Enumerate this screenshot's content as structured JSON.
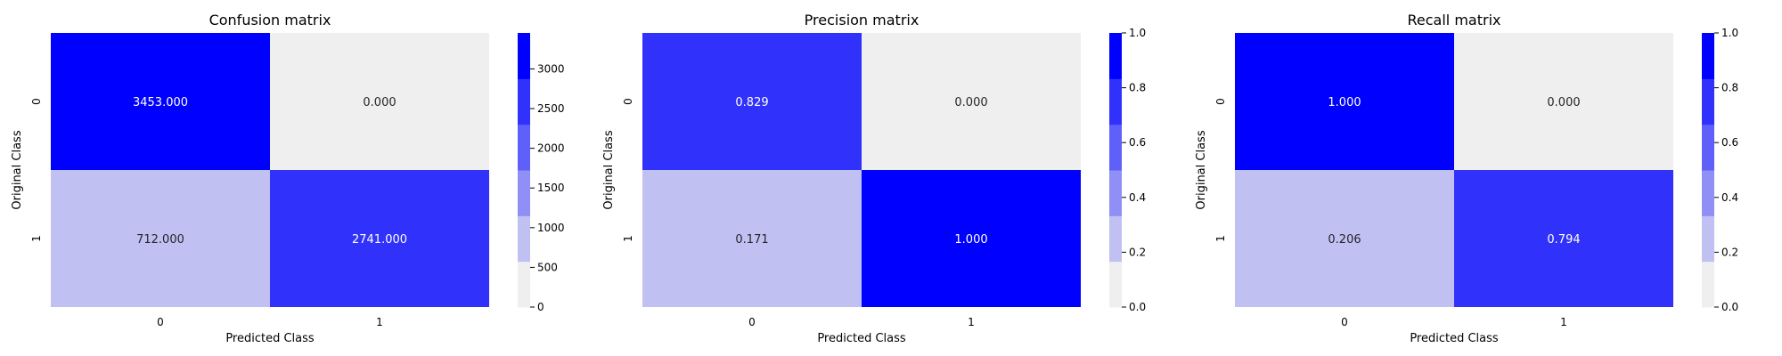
{
  "palette": {
    "colors": [
      "#efefef",
      "#c0c0f3",
      "#8f8ff6",
      "#5f5ff9",
      "#3131fc",
      "#0000ff"
    ],
    "axis": "#000000",
    "cell_text_light": "#ffffff",
    "cell_text_dark": "#262626"
  },
  "chart_data": [
    {
      "type": "heatmap",
      "title": "Confusion matrix",
      "xlabel": "Predicted Class",
      "ylabel": "Original Class",
      "x_tick_labels": [
        "0",
        "1"
      ],
      "y_tick_labels": [
        "0",
        "1"
      ],
      "values": [
        [
          3453,
          0
        ],
        [
          712,
          2741
        ]
      ],
      "cell_labels": [
        [
          "3453.000",
          "0.000"
        ],
        [
          "712.000",
          "2741.000"
        ]
      ],
      "colorbar": {
        "min": 0,
        "max": 3453,
        "ticks": [
          0,
          500,
          1000,
          1500,
          2000,
          2500,
          3000
        ],
        "tick_labels": [
          "0",
          "500",
          "1000",
          "1500",
          "2000",
          "2500",
          "3000"
        ]
      }
    },
    {
      "type": "heatmap",
      "title": "Precision matrix",
      "xlabel": "Predicted Class",
      "ylabel": "Original Class",
      "x_tick_labels": [
        "0",
        "1"
      ],
      "y_tick_labels": [
        "0",
        "1"
      ],
      "values": [
        [
          0.829,
          0.0
        ],
        [
          0.171,
          1.0
        ]
      ],
      "cell_labels": [
        [
          "0.829",
          "0.000"
        ],
        [
          "0.171",
          "1.000"
        ]
      ],
      "colorbar": {
        "min": 0,
        "max": 1,
        "ticks": [
          0,
          0.2,
          0.4,
          0.6,
          0.8,
          1.0
        ],
        "tick_labels": [
          "0.0",
          "0.2",
          "0.4",
          "0.6",
          "0.8",
          "1.0"
        ]
      }
    },
    {
      "type": "heatmap",
      "title": "Recall matrix",
      "xlabel": "Predicted Class",
      "ylabel": "Original Class",
      "x_tick_labels": [
        "0",
        "1"
      ],
      "y_tick_labels": [
        "0",
        "1"
      ],
      "values": [
        [
          1.0,
          0.0
        ],
        [
          0.206,
          0.794
        ]
      ],
      "cell_labels": [
        [
          "1.000",
          "0.000"
        ],
        [
          "0.206",
          "0.794"
        ]
      ],
      "colorbar": {
        "min": 0,
        "max": 1,
        "ticks": [
          0,
          0.2,
          0.4,
          0.6,
          0.8,
          1.0
        ],
        "tick_labels": [
          "0.0",
          "0.2",
          "0.4",
          "0.6",
          "0.8",
          "1.0"
        ]
      }
    }
  ]
}
